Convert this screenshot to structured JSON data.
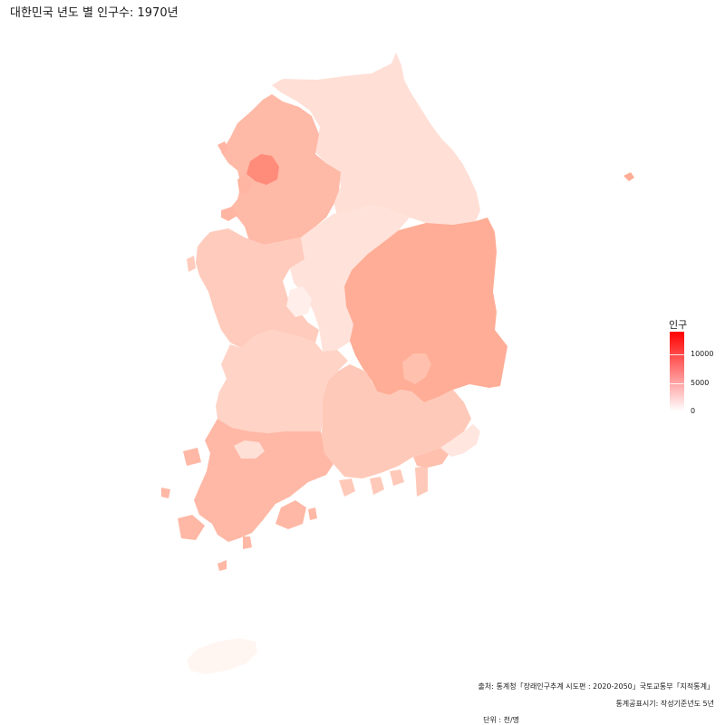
{
  "title": "대한민국 년도 별 인구수: 1970년",
  "legend": {
    "title": "인구",
    "ticks": [
      "0",
      "5000",
      "10000"
    ],
    "tick_values": [
      0,
      5000,
      10000
    ],
    "range": [
      0,
      14000
    ],
    "color_low": "#ffffff",
    "color_high": "#ff0000"
  },
  "captions": {
    "source": "출처: 통계청「장래인구추계 시도편 : 2020-2050」국토교통부「지적통계」",
    "published": "통계공표시기: 작성기준년도 5년",
    "unit": "단위 : 천/명"
  },
  "regions": [
    {
      "id": "seoul",
      "color": "#ff8b7a"
    },
    {
      "id": "incheon",
      "color": "#ffb5a2"
    },
    {
      "id": "gyeonggi",
      "color": "#ffb9a7"
    },
    {
      "id": "gangwon",
      "color": "#ffdfd6"
    },
    {
      "id": "chungbuk",
      "color": "#ffe3db"
    },
    {
      "id": "chungnam",
      "color": "#ffcbbc"
    },
    {
      "id": "daejeon",
      "color": "#ffeee9"
    },
    {
      "id": "jeonbuk",
      "color": "#ffd3c6"
    },
    {
      "id": "gyeongbuk",
      "color": "#ffad96"
    },
    {
      "id": "daegu",
      "color": "#ffc0ae"
    },
    {
      "id": "gyeongnam",
      "color": "#ffc9b9"
    },
    {
      "id": "busan",
      "color": "#ffc0ae"
    },
    {
      "id": "ulsan",
      "color": "#ffe6df"
    },
    {
      "id": "jeonnam",
      "color": "#ffb8a5"
    },
    {
      "id": "gwangju",
      "color": "#ffe0d7"
    },
    {
      "id": "jeju",
      "color": "#fff6f2"
    },
    {
      "id": "ulleung",
      "color": "#ffad96"
    }
  ]
}
